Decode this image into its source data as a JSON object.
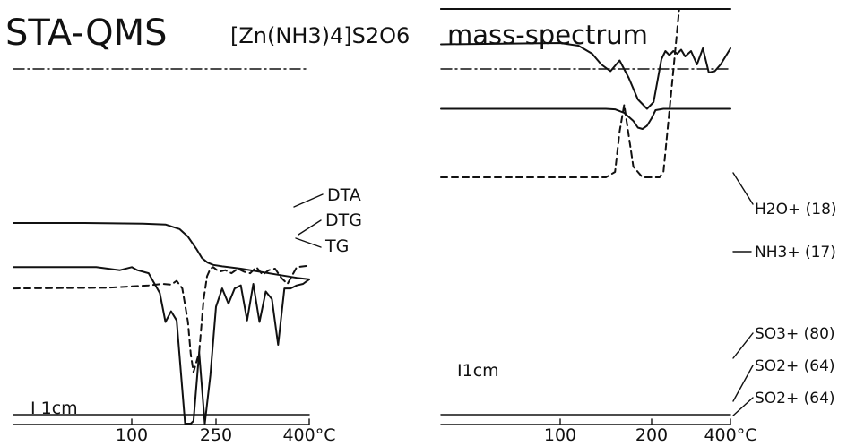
{
  "figure": {
    "title_main": "STA-QMS",
    "compound_text": "[Zn(NH3)4]S2O6",
    "title_right": "mass-spectrum"
  },
  "chart_data": [
    {
      "type": "line",
      "panel": "left",
      "xlabel": "",
      "xticks": [
        "100",
        "250",
        "400°C"
      ],
      "tick_values": [
        100,
        250,
        400
      ],
      "scale_label": "I 1cm",
      "series": [
        {
          "name": "TG",
          "style": "solid",
          "x": [
            0,
            60,
            120,
            160,
            185,
            200,
            215,
            225,
            235,
            245,
            260,
            290,
            320,
            350,
            380,
            400
          ],
          "y": [
            -1.0,
            -1.0,
            -1.05,
            -1.1,
            -1.4,
            -1.9,
            -2.7,
            -3.3,
            -3.6,
            -3.75,
            -3.85,
            -4.0,
            -4.2,
            -4.4,
            -4.6,
            -4.7
          ]
        },
        {
          "name": "DTA",
          "style": "dashed",
          "x": [
            0,
            80,
            130,
            155,
            170,
            180,
            190,
            200,
            205,
            210,
            220,
            228,
            234,
            240,
            245,
            255,
            265,
            275,
            285,
            295,
            305,
            315,
            325,
            335,
            345,
            355,
            365,
            380,
            400
          ],
          "y": [
            -5.3,
            -5.25,
            -5.1,
            -5.0,
            -5.05,
            -4.8,
            -5.3,
            -7.5,
            -9.6,
            -10.8,
            -9.5,
            -6.0,
            -4.5,
            -4.0,
            -3.9,
            -4.2,
            -4.1,
            -4.3,
            -4.0,
            -4.2,
            -4.3,
            -3.9,
            -4.4,
            -4.1,
            -4.0,
            -4.6,
            -5.0,
            -3.9,
            -3.8
          ]
        },
        {
          "name": "DTG",
          "style": "solid",
          "x": [
            0,
            70,
            90,
            100,
            110,
            130,
            150,
            160,
            170,
            180,
            195,
            205,
            210,
            220,
            230,
            240,
            250,
            260,
            270,
            280,
            290,
            300,
            310,
            320,
            330,
            340,
            350,
            360,
            370,
            380,
            390,
            400
          ],
          "y": [
            -3.9,
            -3.9,
            -4.1,
            -3.9,
            -4.1,
            -4.3,
            -5.6,
            -7.5,
            -6.8,
            -7.4,
            -18.0,
            -17.0,
            -14.0,
            -9.5,
            -17.0,
            -11.0,
            -6.5,
            -5.3,
            -6.3,
            -5.3,
            -5.1,
            -7.4,
            -5.0,
            -7.5,
            -5.5,
            -6.0,
            -9.0,
            -5.3,
            -5.3,
            -5.1,
            -5.0,
            -4.7
          ]
        }
      ]
    },
    {
      "type": "line",
      "panel": "right",
      "xlabel": "",
      "xticks": [
        "100",
        "200",
        "400°C"
      ],
      "tick_values": [
        100,
        200,
        400
      ],
      "scale_label": "I1cm",
      "series": [
        {
          "name": "H2O+ (18)",
          "style": "solid",
          "x": [
            0,
            150,
            160,
            170,
            180,
            185,
            190,
            195,
            200,
            210,
            230,
            400
          ],
          "y": [
            2.35,
            2.35,
            2.33,
            2.2,
            1.9,
            1.65,
            1.6,
            1.72,
            2.0,
            2.3,
            2.35,
            2.35
          ]
        },
        {
          "name": "NH3+ (17)",
          "style": "solid",
          "x": [
            0,
            60,
            100,
            120,
            135,
            145,
            155,
            165,
            175,
            185,
            195,
            205,
            215,
            225,
            235,
            245,
            255,
            265,
            275,
            285,
            300,
            315,
            330,
            345,
            360,
            375,
            400
          ],
          "y": [
            4.75,
            4.78,
            4.8,
            4.7,
            4.4,
            4.0,
            3.75,
            4.15,
            3.5,
            2.7,
            2.35,
            2.6,
            3.4,
            4.2,
            4.5,
            4.35,
            4.5,
            4.4,
            4.55,
            4.3,
            4.5,
            4.0,
            4.6,
            3.7,
            3.75,
            4.0,
            4.6
          ]
        },
        {
          "name": "SO3+ (80)",
          "style": "dashed",
          "x": [
            0,
            150,
            160,
            165,
            170,
            180,
            190,
            200,
            210,
            220,
            230,
            250,
            270,
            290,
            310,
            330,
            350,
            370,
            390,
            400
          ],
          "y": [
            -0.2,
            -0.2,
            0.0,
            1.5,
            2.5,
            0.2,
            -0.2,
            -0.2,
            -0.2,
            -0.2,
            0.0,
            3.0,
            7.0,
            8.4,
            8.5,
            9.0,
            9.3,
            9.2,
            9.4,
            9.4
          ]
        },
        {
          "name": "SO2+ (64)",
          "style": "solid",
          "x": [
            0,
            120,
            150,
            155,
            165,
            170,
            180,
            195,
            205,
            215,
            225,
            235,
            245,
            255,
            265,
            275,
            285,
            295,
            305,
            315,
            325,
            335,
            345,
            355,
            365,
            375,
            385,
            395,
            400
          ],
          "y": [
            12.8,
            12.9,
            12.9,
            12.8,
            12.8,
            12.9,
            12.4,
            8.4,
            6.9,
            6.8,
            7.2,
            8.5,
            10.3,
            11.2,
            12.2,
            12.5,
            12.8,
            13.0,
            13.1,
            13.2,
            13.3,
            13.5,
            13.4,
            13.4,
            13.5,
            13.4,
            13.6,
            13.5,
            13.6
          ]
        },
        {
          "name": "SO2+ (64)",
          "style": "dashed",
          "x": [
            0,
            60,
            120,
            150,
            165,
            175,
            185,
            195,
            205,
            215,
            225,
            235,
            245,
            255,
            265,
            275,
            285,
            300,
            315,
            330,
            345,
            360,
            375,
            390,
            400
          ],
          "y": [
            11.5,
            11.6,
            11.7,
            11.8,
            11.9,
            11.7,
            11.1,
            10.9,
            11.2,
            11.4,
            11.7,
            11.8,
            11.8,
            11.9,
            12.0,
            12.1,
            12.3,
            12.4,
            12.5,
            12.6,
            12.7,
            12.6,
            12.8,
            13.0,
            13.2
          ]
        }
      ]
    }
  ]
}
